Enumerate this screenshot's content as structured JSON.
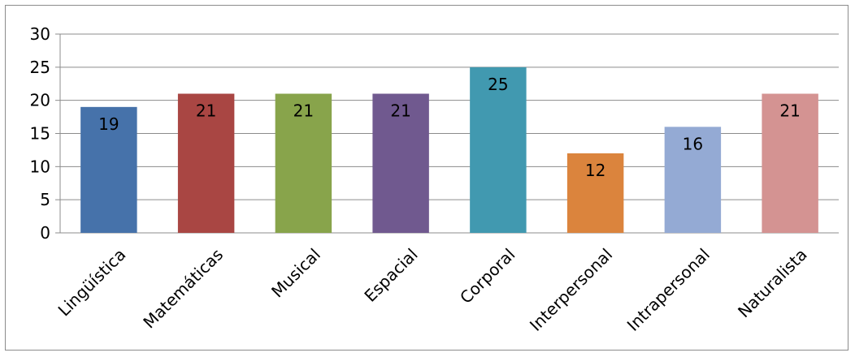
{
  "chart_data": {
    "type": "bar",
    "categories": [
      "Lingüística",
      "Matemáticas",
      "Musical",
      "Espacial",
      "Corporal",
      "Interpersonal",
      "Intrapersonal",
      "Naturalista"
    ],
    "values": [
      19,
      21,
      21,
      21,
      25,
      12,
      16,
      21
    ],
    "data_labels": [
      "19",
      "21",
      "21",
      "21",
      "25",
      "12",
      "16",
      "21"
    ],
    "colors": [
      "#4672aa",
      "#a94643",
      "#88a44b",
      "#70598f",
      "#4199b0",
      "#db843d",
      "#94aad4",
      "#d49392"
    ],
    "title": "",
    "xlabel": "",
    "ylabel": "",
    "ylim": [
      0,
      30
    ],
    "yticks": [
      "0",
      "5",
      "10",
      "15",
      "20",
      "25",
      "30"
    ],
    "grid": true,
    "legend": "none"
  }
}
